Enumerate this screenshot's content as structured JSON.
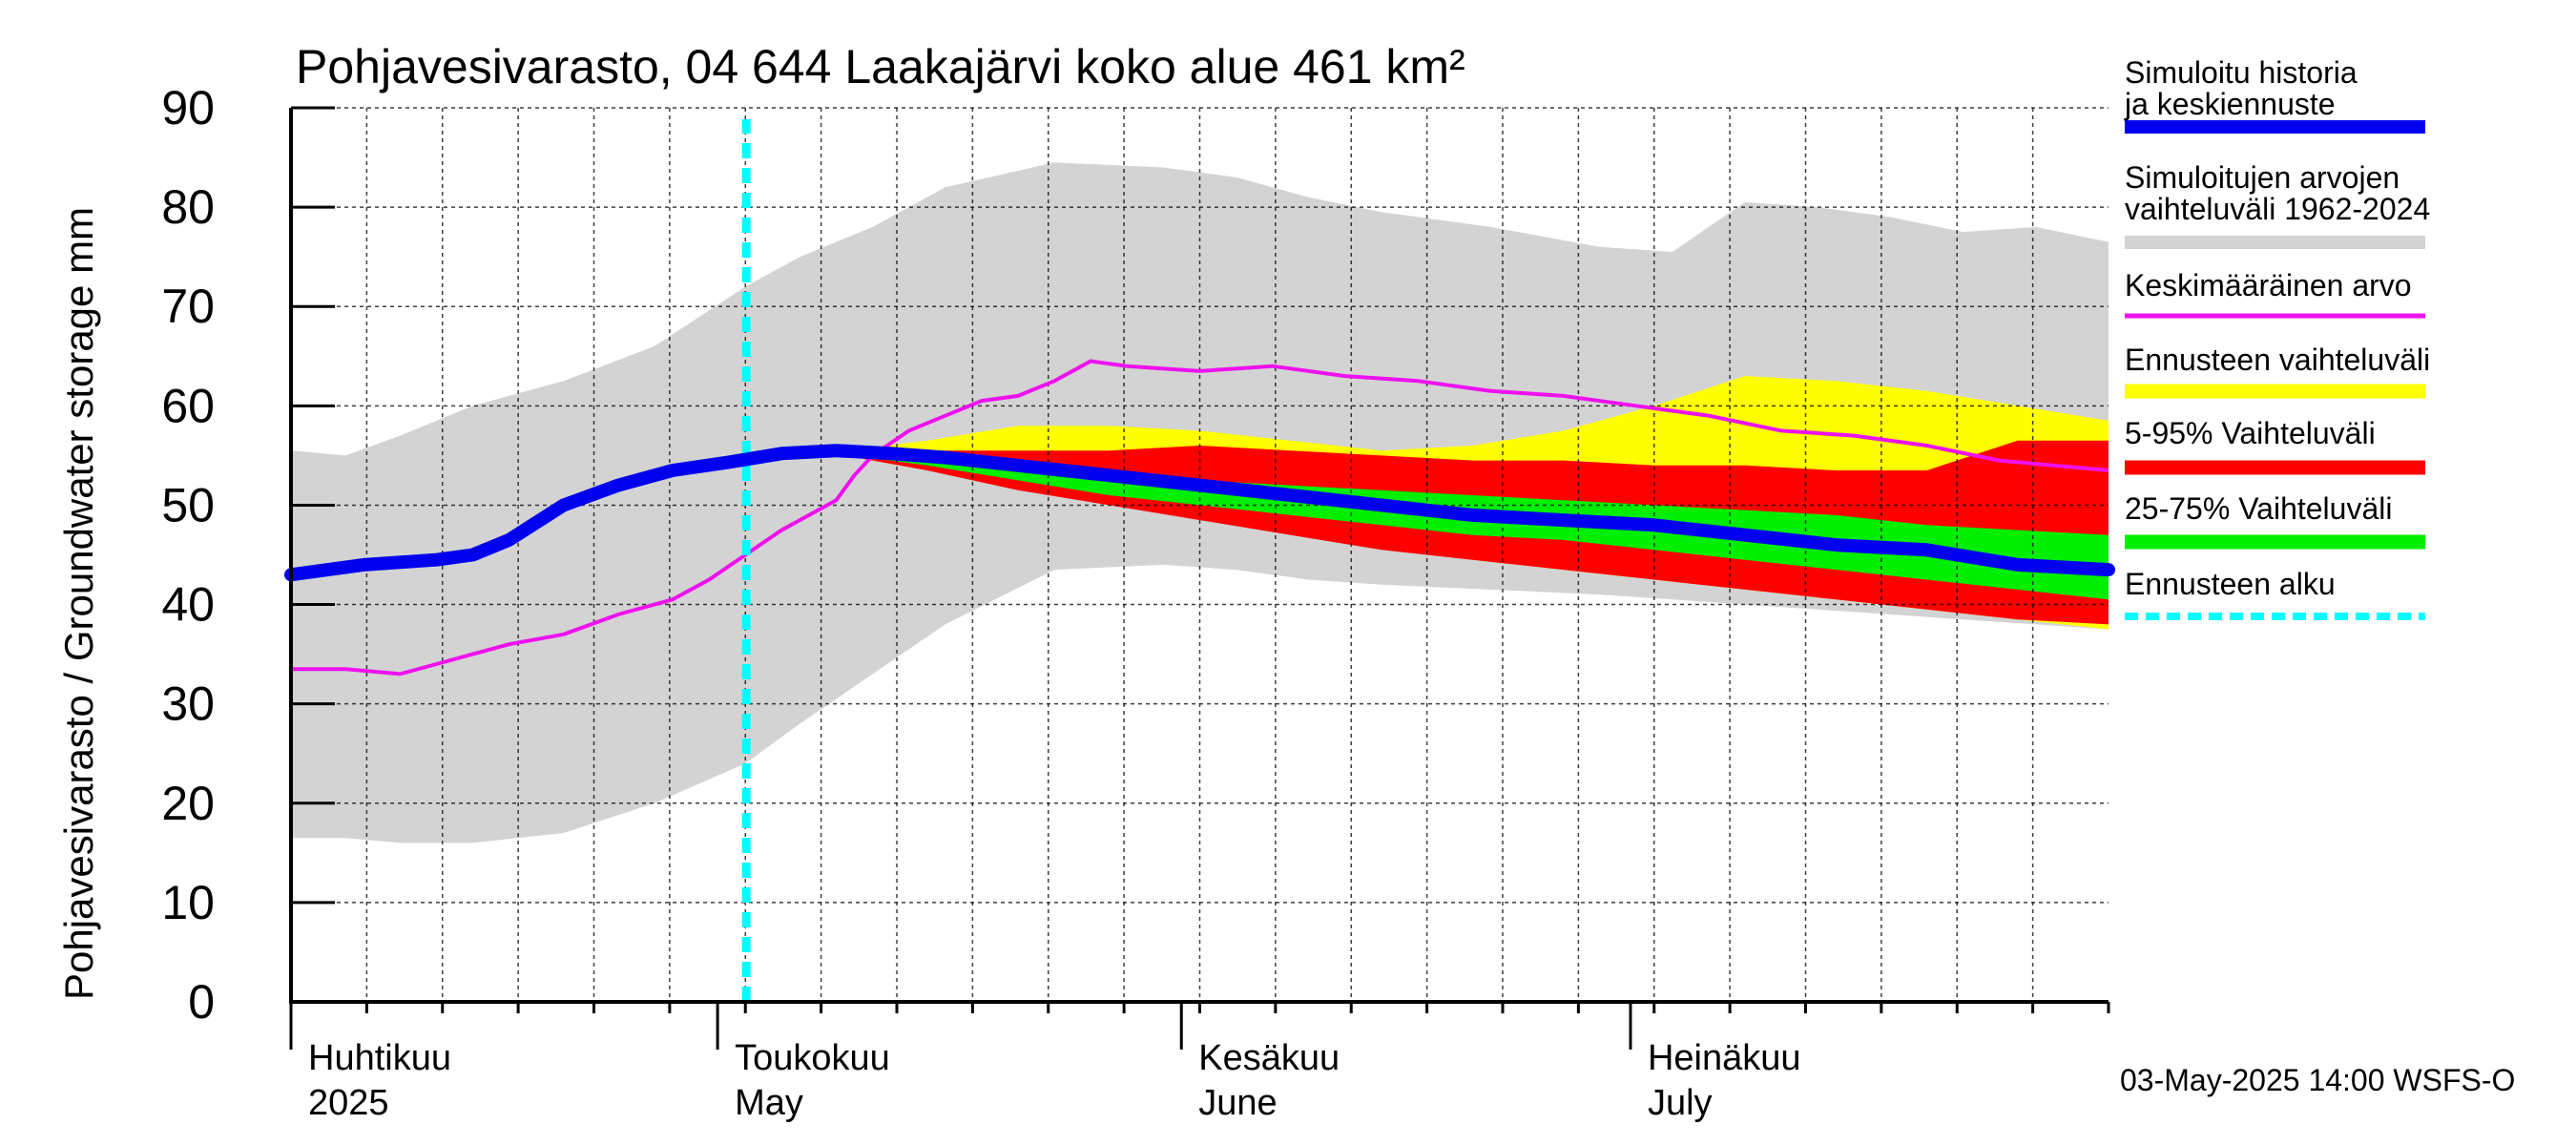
{
  "chart_data": {
    "type": "area",
    "title": "Pohjavesivarasto, 04 644 Laakajärvi koko alue 461 km²",
    "ylabel": "Pohjavesivarasto / Groundwater storage   mm",
    "ylim": [
      0,
      90
    ],
    "yticks": [
      0,
      10,
      20,
      30,
      40,
      50,
      60,
      70,
      80,
      90
    ],
    "xlim": [
      0,
      1
    ],
    "grid": true,
    "x_months": [
      {
        "fi": "Huhtikuu",
        "en": "2025",
        "start": 0
      },
      {
        "fi": "Toukokuu",
        "en": "May",
        "start": 0.2347
      },
      {
        "fi": "Kesäkuu",
        "en": "June",
        "start": 0.4899
      },
      {
        "fi": "Heinäkuu",
        "en": "July",
        "start": 0.737
      }
    ],
    "forecast_start": 0.2505,
    "series": {
      "sim_range": {
        "x": [
          0,
          0.03,
          0.06,
          0.1,
          0.15,
          0.2,
          0.25,
          0.28,
          0.32,
          0.36,
          0.42,
          0.48,
          0.52,
          0.56,
          0.6,
          0.66,
          0.72,
          0.76,
          0.8,
          0.84,
          0.88,
          0.92,
          0.96,
          1
        ],
        "upper": [
          55.5,
          55,
          57,
          60,
          62.5,
          66,
          72,
          75,
          78,
          82,
          84.5,
          84,
          83,
          81,
          79.5,
          78,
          76,
          75.5,
          80.5,
          80,
          79,
          77.5,
          78,
          76.5
        ],
        "lower": [
          16.5,
          16.5,
          16,
          16,
          17,
          20,
          24,
          28,
          33,
          38,
          43.5,
          44,
          43.5,
          42.5,
          42,
          41.5,
          41,
          40.5,
          40,
          39.5,
          39,
          38.5,
          38,
          37.5
        ]
      },
      "forecast_range": {
        "x": [
          0.305,
          0.35,
          0.4,
          0.45,
          0.5,
          0.55,
          0.6,
          0.65,
          0.7,
          0.75,
          0.8,
          0.85,
          0.9,
          0.95,
          1
        ],
        "upper": [
          55.5,
          56.5,
          58,
          58,
          57.5,
          56.5,
          55.5,
          56,
          57.5,
          60,
          63,
          62.5,
          61.5,
          60,
          58.5
        ],
        "lower": [
          55,
          54,
          52,
          50.5,
          49,
          47.5,
          46,
          44.5,
          43.5,
          42.5,
          41.5,
          40.5,
          39.5,
          38.5,
          37.5
        ]
      },
      "p5_95": {
        "x": [
          0.305,
          0.35,
          0.4,
          0.45,
          0.5,
          0.55,
          0.6,
          0.65,
          0.7,
          0.75,
          0.8,
          0.85,
          0.9,
          0.95,
          1
        ],
        "upper": [
          55.5,
          55.5,
          55.5,
          55.5,
          56,
          55.5,
          55,
          54.5,
          54.5,
          54,
          54,
          53.5,
          53.5,
          56.5,
          56.5
        ],
        "lower": [
          55,
          53.5,
          51.5,
          50,
          48.5,
          47,
          45.5,
          44.5,
          43.5,
          42.5,
          41.5,
          40.5,
          39.5,
          38.5,
          38
        ]
      },
      "p25_75": {
        "x": [
          0.305,
          0.35,
          0.4,
          0.45,
          0.5,
          0.55,
          0.6,
          0.65,
          0.7,
          0.75,
          0.8,
          0.85,
          0.9,
          0.95,
          1
        ],
        "upper": [
          55.3,
          54.5,
          53.5,
          53,
          52.5,
          52,
          51.5,
          51,
          50.5,
          50,
          49.5,
          49,
          48,
          47.5,
          47
        ],
        "lower": [
          55.1,
          54,
          52.5,
          51,
          50,
          49,
          48,
          47,
          46.5,
          45.5,
          44.5,
          43.5,
          42.5,
          41.5,
          40.5
        ]
      },
      "median": {
        "name": "Simuloitu historia ja keskiennuste",
        "x": [
          0,
          0.04,
          0.08,
          0.1,
          0.12,
          0.15,
          0.18,
          0.21,
          0.24,
          0.27,
          0.3,
          0.33,
          0.36,
          0.4,
          0.45,
          0.5,
          0.55,
          0.6,
          0.65,
          0.7,
          0.75,
          0.8,
          0.85,
          0.9,
          0.95,
          1
        ],
        "values": [
          43,
          44,
          44.5,
          45,
          46.5,
          50,
          52,
          53.5,
          54.3,
          55.2,
          55.5,
          55.2,
          54.8,
          54,
          53,
          52,
          51,
          50,
          49,
          48.5,
          48,
          47,
          46,
          45.5,
          44,
          43.5
        ]
      },
      "mean": {
        "name": "Keskimääräinen arvo",
        "x": [
          0,
          0.03,
          0.06,
          0.08,
          0.1,
          0.12,
          0.15,
          0.18,
          0.21,
          0.23,
          0.25,
          0.27,
          0.3,
          0.31,
          0.32,
          0.34,
          0.36,
          0.38,
          0.4,
          0.42,
          0.44,
          0.46,
          0.5,
          0.54,
          0.58,
          0.62,
          0.66,
          0.7,
          0.74,
          0.78,
          0.82,
          0.86,
          0.9,
          0.94,
          1
        ],
        "values": [
          33.5,
          33.5,
          33,
          34,
          35,
          36,
          37,
          39,
          40.5,
          42.5,
          45,
          47.5,
          50.5,
          53,
          55,
          57.5,
          59,
          60.5,
          61,
          62.5,
          64.5,
          64,
          63.5,
          64,
          63,
          62.5,
          61.5,
          61,
          60,
          59,
          57.5,
          57,
          56,
          54.5,
          53.5
        ]
      }
    },
    "legend": [
      {
        "label": "Simuloitu historia ja keskiennuste",
        "color": "#0000ee",
        "style": "thick"
      },
      {
        "label": "Simuloitujen arvojen vaihteluväli 1962-2024",
        "color": "#d3d3d3",
        "style": "band"
      },
      {
        "label": "Keskimääräinen arvo",
        "color": "#ee11ee",
        "style": "thin"
      },
      {
        "label": "Ennusteen vaihteluväli",
        "color": "#ffff00",
        "style": "band"
      },
      {
        "label": "5-95% Vaihteluväli",
        "color": "#ff0000",
        "style": "band"
      },
      {
        "label": "25-75% Vaihteluväli",
        "color": "#00ee00",
        "style": "band"
      },
      {
        "label": "Ennusteen alku",
        "color": "#00ffff",
        "style": "dashed"
      }
    ],
    "legend_placement": "right",
    "footer": "03-May-2025 14:00 WSFS-O"
  }
}
